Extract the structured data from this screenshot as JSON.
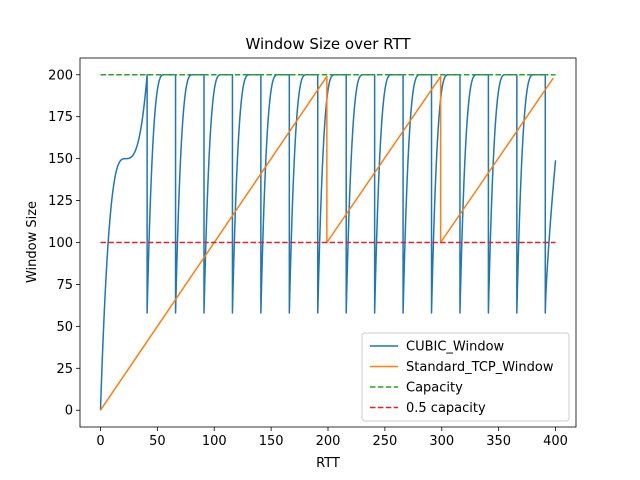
{
  "chart_data": {
    "type": "line",
    "title": "Window Size over RTT",
    "xlabel": "RTT",
    "ylabel": "Window Size",
    "xlim": [
      -18,
      418
    ],
    "ylim": [
      -10,
      210
    ],
    "xticks": [
      0,
      50,
      100,
      150,
      200,
      250,
      300,
      350,
      400
    ],
    "yticks": [
      0,
      25,
      50,
      75,
      100,
      125,
      150,
      175,
      200
    ],
    "grid": false,
    "legend_position": "lower-right",
    "series": [
      {
        "name": "CUBIC_Window",
        "color": "#1f77b4",
        "style": "solid",
        "model": "cubic_sawtooth",
        "description_values": {
          "initial_plateau": 150,
          "max": 200,
          "trough": 58,
          "drop_rtts": [
            41,
            66,
            91,
            116,
            141,
            166,
            191,
            216,
            241,
            266,
            291,
            316,
            341,
            366,
            391
          ],
          "last_point": [
            400,
            149
          ]
        }
      },
      {
        "name": "Standard_TCP_Window",
        "color": "#ff7f0e",
        "style": "solid",
        "x": [
          0,
          199,
          199,
          299,
          299,
          398
        ],
        "y": [
          0,
          199,
          100,
          199,
          100,
          198
        ]
      },
      {
        "name": "Capacity",
        "color": "#2ca02c",
        "style": "dashed",
        "x": [
          0,
          400
        ],
        "y": [
          200,
          200
        ]
      },
      {
        "name": "0.5 capacity",
        "color": "#d62728",
        "style": "dashed",
        "x": [
          0,
          400
        ],
        "y": [
          100,
          100
        ]
      }
    ]
  }
}
